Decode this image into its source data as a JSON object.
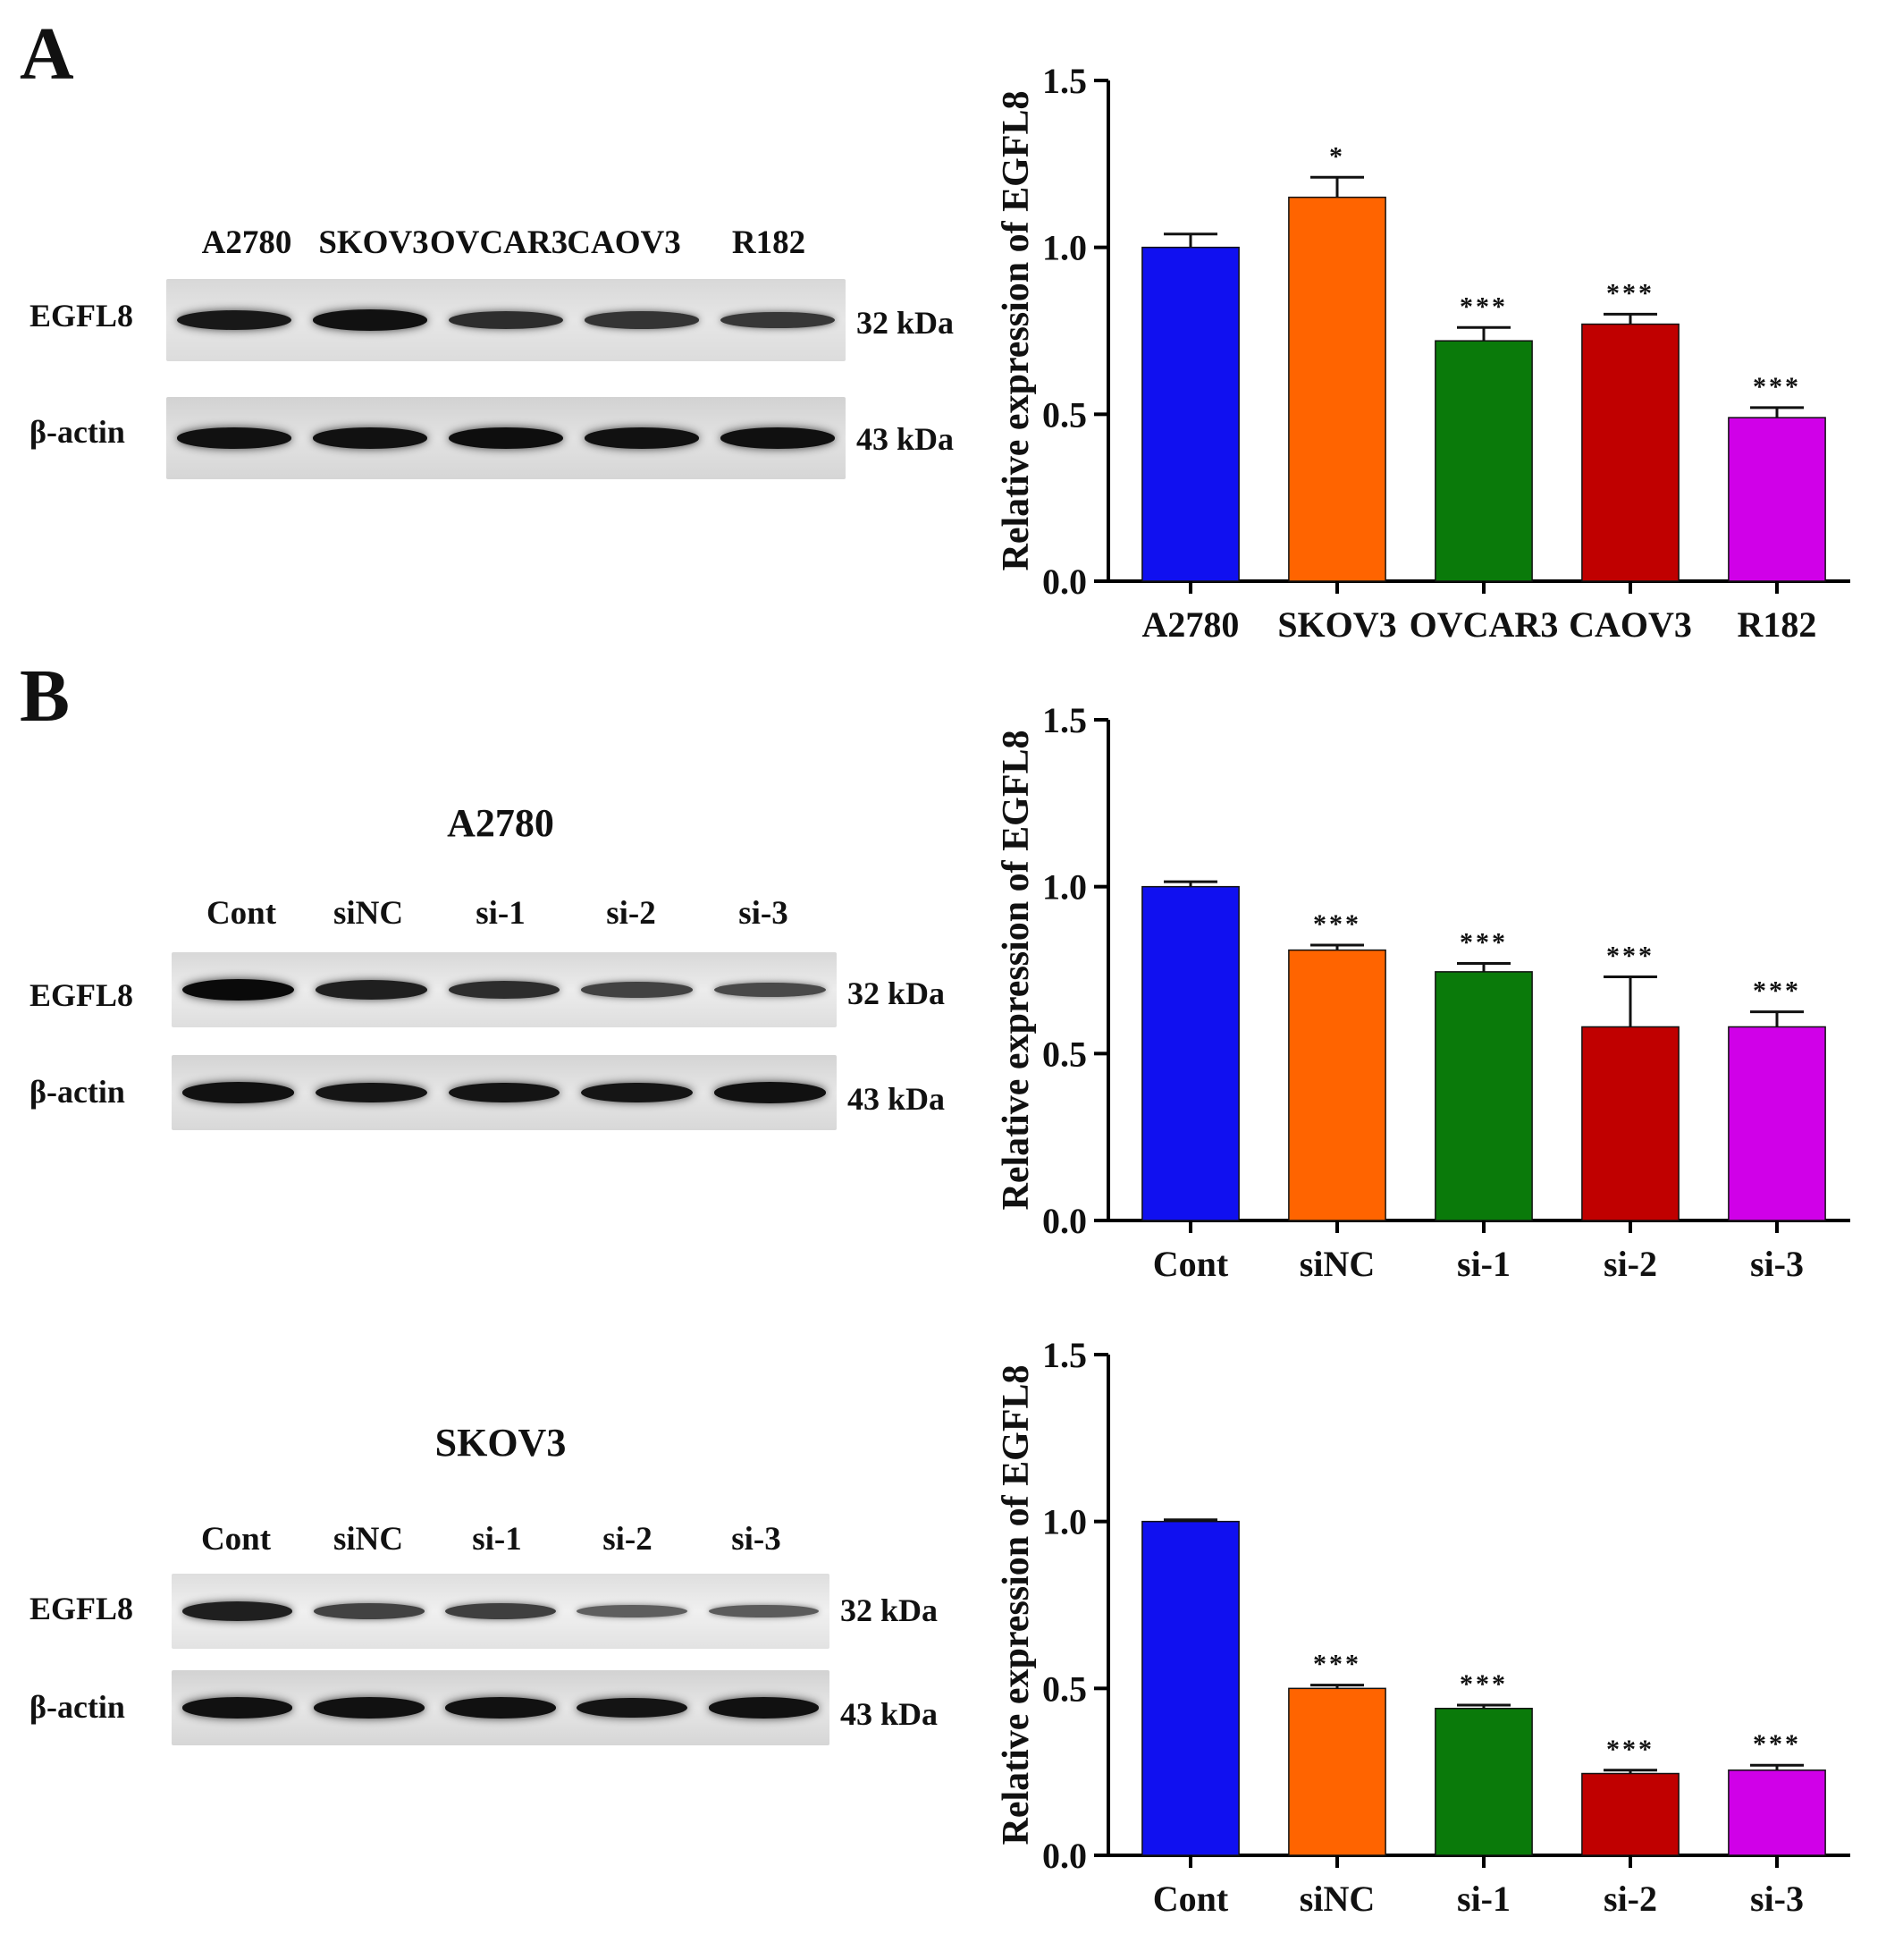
{
  "panels": {
    "a": {
      "letter": "A"
    },
    "b": {
      "letter": "B"
    }
  },
  "blots": [
    {
      "title": "",
      "lanes": [
        "A2780",
        "SKOV3",
        "OVCAR3",
        "CAOV3",
        "R182"
      ],
      "rows": [
        {
          "label": "EGFL8",
          "kda": "32 kDa",
          "intensity": [
            0.9,
            0.95,
            0.75,
            0.7,
            0.68
          ]
        },
        {
          "label": "β-actin",
          "kda": "43 kDa",
          "intensity": [
            0.95,
            0.95,
            0.97,
            0.95,
            0.96
          ]
        }
      ]
    },
    {
      "title": "A2780",
      "lanes": [
        "Cont",
        "siNC",
        "si-1",
        "si-2",
        "si-3"
      ],
      "rows": [
        {
          "label": "EGFL8",
          "kda": "32 kDa",
          "intensity": [
            1.0,
            0.85,
            0.75,
            0.6,
            0.55
          ]
        },
        {
          "label": "β-actin",
          "kda": "43 kDa",
          "intensity": [
            0.95,
            0.92,
            0.93,
            0.92,
            0.95
          ]
        }
      ]
    },
    {
      "title": "SKOV3",
      "lanes": [
        "Cont",
        "siNC",
        "si-1",
        "si-2",
        "si-3"
      ],
      "rows": [
        {
          "label": "EGFL8",
          "kda": "32 kDa",
          "intensity": [
            0.85,
            0.6,
            0.62,
            0.4,
            0.42
          ]
        },
        {
          "label": "β-actin",
          "kda": "43 kDa",
          "intensity": [
            0.95,
            0.95,
            0.95,
            0.93,
            0.95
          ]
        }
      ]
    }
  ],
  "chart_data": [
    {
      "type": "bar",
      "categories": [
        "A2780",
        "SKOV3",
        "OVCAR3",
        "CAOV3",
        "R182"
      ],
      "values": [
        1.0,
        1.15,
        0.72,
        0.77,
        0.49
      ],
      "errors": [
        0.04,
        0.06,
        0.04,
        0.03,
        0.03
      ],
      "significance": [
        "",
        "*",
        "***",
        "***",
        "***"
      ],
      "colors": [
        "#1010f0",
        "#ff6400",
        "#0a7a0a",
        "#c00000",
        "#d000e8"
      ],
      "ylabel": "Relative expression of EGFL8",
      "yticks": [
        "0.0",
        "0.5",
        "1.0",
        "1.5"
      ],
      "ylim": [
        0,
        1.5
      ]
    },
    {
      "type": "bar",
      "categories": [
        "Cont",
        "siNC",
        "si-1",
        "si-2",
        "si-3"
      ],
      "values": [
        1.0,
        0.81,
        0.745,
        0.58,
        0.58
      ],
      "errors": [
        0.015,
        0.015,
        0.025,
        0.15,
        0.045
      ],
      "significance": [
        "",
        "***",
        "***",
        "***",
        "***"
      ],
      "colors": [
        "#1010f0",
        "#ff6400",
        "#0a7a0a",
        "#c00000",
        "#d000e8"
      ],
      "ylabel": "Relative expression of EGFL8",
      "yticks": [
        "0.0",
        "0.5",
        "1.0",
        "1.5"
      ],
      "ylim": [
        0,
        1.5
      ]
    },
    {
      "type": "bar",
      "categories": [
        "Cont",
        "siNC",
        "si-1",
        "si-2",
        "si-3"
      ],
      "values": [
        1.0,
        0.5,
        0.44,
        0.245,
        0.255
      ],
      "errors": [
        0.005,
        0.01,
        0.01,
        0.01,
        0.015
      ],
      "significance": [
        "",
        "***",
        "***",
        "***",
        "***"
      ],
      "colors": [
        "#1010f0",
        "#ff6400",
        "#0a7a0a",
        "#c00000",
        "#d000e8"
      ],
      "ylabel": "Relative expression of EGFL8",
      "yticks": [
        "0.0",
        "0.5",
        "1.0",
        "1.5"
      ],
      "ylim": [
        0,
        1.5
      ]
    }
  ]
}
